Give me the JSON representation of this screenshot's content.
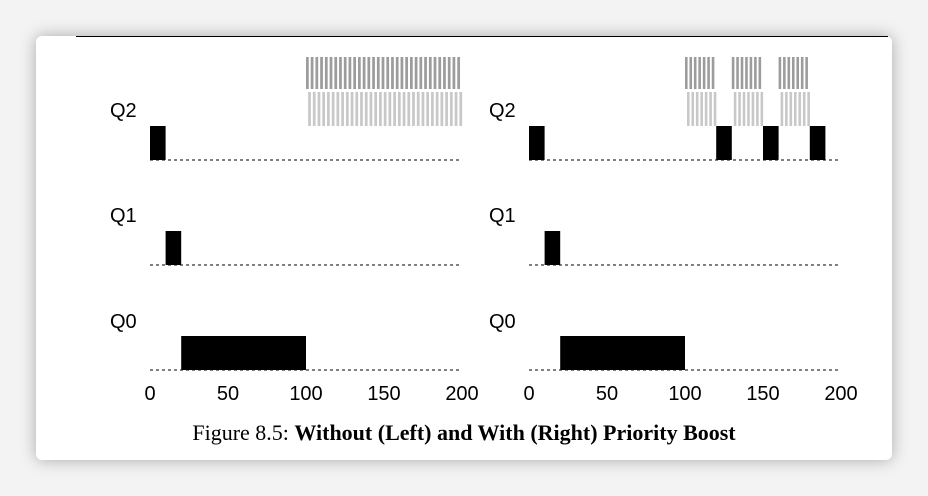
{
  "chart_data": [
    {
      "type": "bar",
      "panel": "left",
      "queues": [
        "Q2",
        "Q1",
        "Q0"
      ],
      "x_ticks": [
        "0",
        "50",
        "100",
        "150",
        "200"
      ],
      "xlim": [
        0,
        200
      ],
      "long_job": [
        {
          "queue": "Q2",
          "start": 0,
          "end": 10
        },
        {
          "queue": "Q1",
          "start": 10,
          "end": 20
        },
        {
          "queue": "Q0",
          "start": 20,
          "end": 100
        }
      ],
      "short_jobs": [
        {
          "queue": "Q2",
          "start": 100,
          "end": 200
        }
      ],
      "long_job_color": "#000000",
      "short_job_colors": [
        "#9c9c9c",
        "#c8c8c8"
      ]
    },
    {
      "type": "bar",
      "panel": "right",
      "queues": [
        "Q2",
        "Q1",
        "Q0"
      ],
      "x_ticks": [
        "0",
        "50",
        "100",
        "150",
        "200"
      ],
      "xlim": [
        0,
        200
      ],
      "long_job": [
        {
          "queue": "Q2",
          "start": 0,
          "end": 10
        },
        {
          "queue": "Q1",
          "start": 10,
          "end": 20
        },
        {
          "queue": "Q0",
          "start": 20,
          "end": 100
        },
        {
          "queue": "Q2",
          "start": 120,
          "end": 130
        },
        {
          "queue": "Q2",
          "start": 150,
          "end": 160
        },
        {
          "queue": "Q2",
          "start": 180,
          "end": 190
        }
      ],
      "short_jobs": [
        {
          "queue": "Q2",
          "start": 100,
          "end": 120
        },
        {
          "queue": "Q2",
          "start": 130,
          "end": 150
        },
        {
          "queue": "Q2",
          "start": 160,
          "end": 180
        }
      ],
      "long_job_color": "#000000",
      "short_job_colors": [
        "#9c9c9c",
        "#c8c8c8"
      ]
    }
  ],
  "caption": {
    "prefix": "Figure 8.5: ",
    "title": "Without (Left) and With (Right) Priority Boost"
  }
}
